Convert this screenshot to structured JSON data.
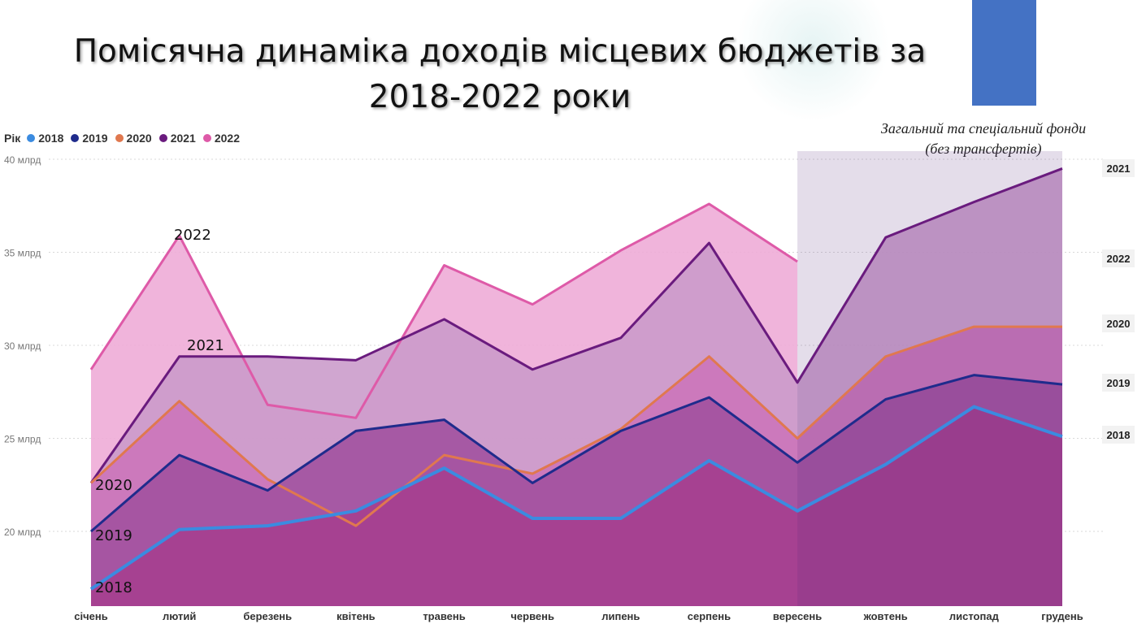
{
  "slide": {
    "title_line1": "Помісячна динаміка доходів  місцевих бюджетів за",
    "title_line2": "2018-2022 роки",
    "subtitle_line1": "Загальний та спеціальний фонди",
    "subtitle_line2": "(без трансфертів)",
    "accent_color": "#4472c4"
  },
  "legend": {
    "title": "Рік",
    "items": [
      {
        "label": "2018",
        "color": "#3b8be0"
      },
      {
        "label": "2019",
        "color": "#1f2b8c"
      },
      {
        "label": "2020",
        "color": "#e0784f"
      },
      {
        "label": "2021",
        "color": "#6a1b7e"
      },
      {
        "label": "2022",
        "color": "#de5aa8"
      }
    ]
  },
  "chart_data": {
    "type": "area",
    "categories": [
      "січень",
      "лютий",
      "березень",
      "квітень",
      "травень",
      "червень",
      "липень",
      "серпень",
      "вересень",
      "жовтень",
      "листопад",
      "грудень"
    ],
    "y_ticks": [
      "20 млрд",
      "25 млрд",
      "30 млрд",
      "35 млрд",
      "40 млрд"
    ],
    "ylim": [
      16,
      40
    ],
    "grid": true,
    "series": [
      {
        "name": "2022",
        "color": "#de5aa8",
        "fill": "#eeaad6",
        "values": [
          28.7,
          35.9,
          26.8,
          26.1,
          34.3,
          32.2,
          35.1,
          37.6,
          34.5,
          null,
          null,
          null
        ]
      },
      {
        "name": "2021",
        "color": "#6a1b7e",
        "fill": "#c99ac9",
        "values": [
          22.6,
          29.4,
          29.4,
          29.2,
          31.4,
          28.7,
          30.4,
          35.5,
          28.0,
          35.8,
          37.7,
          39.5
        ]
      },
      {
        "name": "2020",
        "color": "#e0784f",
        "fill": "#cc74ba",
        "values": [
          22.6,
          27.0,
          22.8,
          20.3,
          24.1,
          23.1,
          25.5,
          29.4,
          25.0,
          29.4,
          31.0,
          31.0
        ]
      },
      {
        "name": "2019",
        "color": "#1f2b8c",
        "fill": "#a1509e",
        "values": [
          20.0,
          24.1,
          22.2,
          25.4,
          26.0,
          22.6,
          25.4,
          27.2,
          23.7,
          27.1,
          28.4,
          27.9
        ]
      },
      {
        "name": "2018",
        "color": "#3b8be0",
        "fill": "#a63f8e",
        "values": [
          16.9,
          20.1,
          20.3,
          21.1,
          23.4,
          20.7,
          20.7,
          23.8,
          21.1,
          23.6,
          26.7,
          25.1
        ]
      }
    ],
    "inline_labels": [
      {
        "text": "2022",
        "series": "2022"
      },
      {
        "text": "2021",
        "series": "2021"
      },
      {
        "text": "2020",
        "series": "2020"
      },
      {
        "text": "2019",
        "series": "2019"
      },
      {
        "text": "2018",
        "series": "2018"
      }
    ],
    "end_labels": [
      "2021",
      "2022",
      "2020",
      "2019",
      "2018"
    ]
  }
}
